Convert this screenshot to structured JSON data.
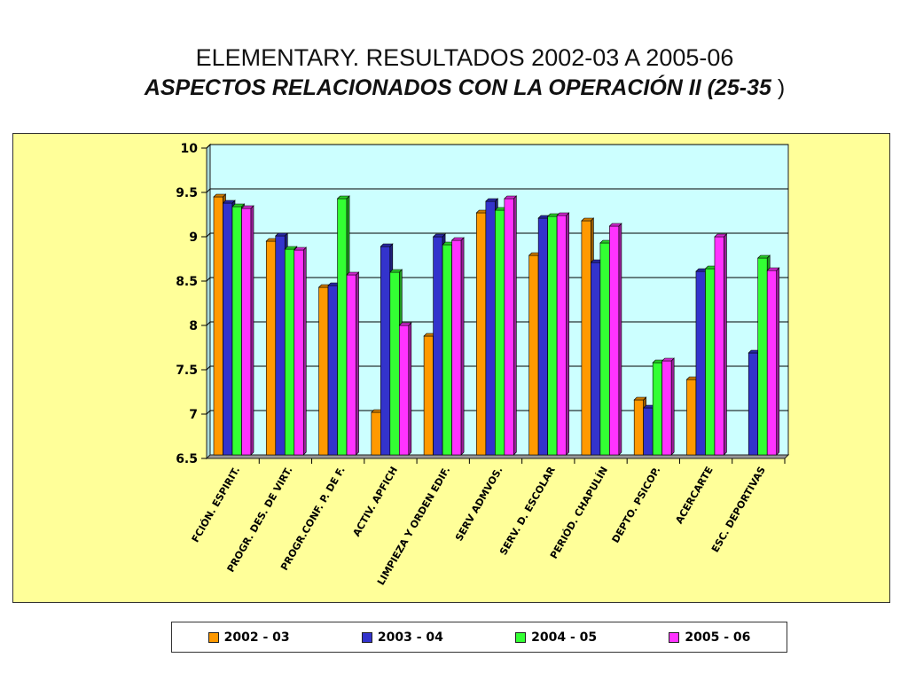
{
  "title_line1": "ELEMENTARY. RESULTADOS 2002-03 A 2005-06",
  "title_line2_bold": "ASPECTOS RELACIONADOS CON LA OPERACIÓN  II (25-35 ",
  "title_line2_plain": ")",
  "chart_data": {
    "type": "bar",
    "categories": [
      "FCIÓN. ESPIRIT.",
      "PROGR. DES. DE VIRT.",
      "PROGR.CONF. P. DE F.",
      "ACTIV. APFICH",
      "LIMPIEZA Y ORDEN EDIF.",
      "SERV ADMVOS.",
      "SERV. D. ESCOLAR",
      "PERIÓD. CHAPULÍN",
      "DEPTO. PSICOP.",
      "ACERCARTE",
      "ESC. DEPORTIVAS"
    ],
    "series": [
      {
        "name": "2002 - 03",
        "color": "#ff9900",
        "values": [
          9.41,
          8.91,
          8.39,
          6.98,
          7.84,
          9.23,
          8.75,
          9.14,
          7.12,
          7.35,
          null
        ]
      },
      {
        "name": "2003 - 04",
        "color": "#3333cc",
        "values": [
          9.34,
          8.97,
          8.41,
          8.85,
          8.96,
          9.36,
          9.17,
          8.67,
          7.03,
          8.57,
          7.65
        ]
      },
      {
        "name": "2004 - 05",
        "color": "#33ff33",
        "values": [
          9.3,
          8.82,
          9.39,
          8.56,
          8.87,
          9.26,
          9.19,
          8.89,
          7.54,
          8.6,
          8.72
        ]
      },
      {
        "name": "2005 - 06",
        "color": "#ff33ff",
        "values": [
          9.28,
          8.81,
          8.53,
          7.96,
          8.92,
          9.39,
          9.2,
          9.08,
          7.56,
          8.96,
          8.58
        ]
      }
    ],
    "ylim": [
      6.5,
      10
    ],
    "yticks": [
      "6.5",
      "7",
      "7.5",
      "8",
      "8.5",
      "9",
      "9.5",
      "10"
    ],
    "grid": true,
    "plot_background": "#ccffff",
    "panel_background": "#ffff99",
    "legend_position": "bottom"
  }
}
